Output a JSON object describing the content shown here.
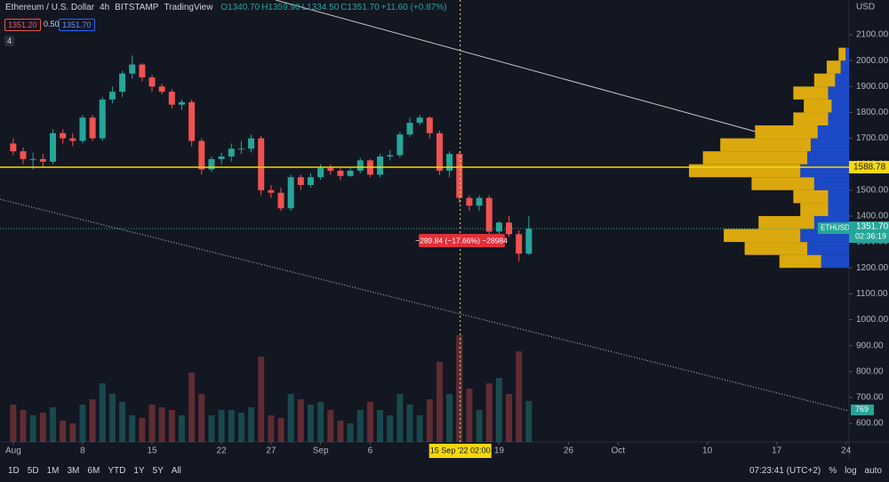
{
  "header": {
    "symbol": "Ethereum / U.S. Dollar",
    "interval": "4h",
    "exchange": "BITSTAMP",
    "source": "TradingView",
    "open": "O1340.70",
    "high": "H1359.90",
    "low": "L1334.50",
    "close": "C1351.70",
    "change": "+11.60 (+0.87%)",
    "bid": "1351.20",
    "spread": "0.50",
    "ask": "1351.70",
    "indicators": "4"
  },
  "toolbar": {
    "ranges": [
      "1D",
      "5D",
      "1M",
      "3M",
      "6M",
      "YTD",
      "1Y",
      "5Y",
      "All"
    ],
    "clock": "07:23:41 (UTC+2)",
    "percent": "%",
    "log": "log",
    "auto": "auto"
  },
  "chart_data": {
    "type": "candlestick",
    "currency": "USD",
    "x": [
      "2022-08-01",
      "2022-08-02",
      "2022-08-03",
      "2022-08-04",
      "2022-08-05",
      "2022-08-06",
      "2022-08-07",
      "2022-08-08",
      "2022-08-09",
      "2022-08-10",
      "2022-08-11",
      "2022-08-12",
      "2022-08-13",
      "2022-08-14",
      "2022-08-15",
      "2022-08-16",
      "2022-08-17",
      "2022-08-18",
      "2022-08-19",
      "2022-08-20",
      "2022-08-21",
      "2022-08-22",
      "2022-08-23",
      "2022-08-24",
      "2022-08-25",
      "2022-08-26",
      "2022-08-27",
      "2022-08-28",
      "2022-08-29",
      "2022-08-30",
      "2022-08-31",
      "2022-09-01",
      "2022-09-02",
      "2022-09-03",
      "2022-09-04",
      "2022-09-05",
      "2022-09-06",
      "2022-09-07",
      "2022-09-08",
      "2022-09-09",
      "2022-09-10",
      "2022-09-11",
      "2022-09-12",
      "2022-09-13",
      "2022-09-14",
      "2022-09-15",
      "2022-09-16",
      "2022-09-17",
      "2022-09-18",
      "2022-09-19",
      "2022-09-20",
      "2022-09-21",
      "2022-09-22"
    ],
    "open": [
      1680,
      1650,
      1620,
      1620,
      1610,
      1720,
      1700,
      1690,
      1780,
      1700,
      1850,
      1880,
      1950,
      1985,
      1935,
      1900,
      1880,
      1830,
      1840,
      1690,
      1580,
      1620,
      1630,
      1660,
      1660,
      1700,
      1500,
      1490,
      1430,
      1550,
      1520,
      1550,
      1585,
      1575,
      1555,
      1575,
      1615,
      1560,
      1630,
      1635,
      1715,
      1760,
      1780,
      1720,
      1575,
      1640,
      1470,
      1440,
      1470,
      1340,
      1375,
      1330,
      1255
    ],
    "high": [
      1700,
      1665,
      1645,
      1640,
      1735,
      1735,
      1720,
      1790,
      1790,
      1860,
      1900,
      1960,
      2020,
      1990,
      1945,
      1910,
      1890,
      1850,
      1850,
      1700,
      1630,
      1645,
      1680,
      1690,
      1715,
      1710,
      1520,
      1510,
      1560,
      1560,
      1565,
      1600,
      1600,
      1585,
      1590,
      1625,
      1620,
      1640,
      1655,
      1725,
      1780,
      1790,
      1785,
      1730,
      1650,
      1650,
      1480,
      1480,
      1480,
      1380,
      1400,
      1345,
      1400
    ],
    "low": [
      1635,
      1600,
      1580,
      1590,
      1600,
      1680,
      1670,
      1680,
      1690,
      1690,
      1835,
      1860,
      1930,
      1920,
      1880,
      1870,
      1815,
      1810,
      1670,
      1560,
      1570,
      1600,
      1610,
      1640,
      1645,
      1480,
      1470,
      1420,
      1420,
      1500,
      1510,
      1540,
      1560,
      1540,
      1550,
      1565,
      1550,
      1550,
      1615,
      1625,
      1705,
      1750,
      1700,
      1560,
      1550,
      1450,
      1420,
      1420,
      1330,
      1320,
      1320,
      1225,
      1250
    ],
    "close": [
      1650,
      1620,
      1620,
      1610,
      1720,
      1700,
      1690,
      1780,
      1700,
      1850,
      1880,
      1950,
      1985,
      1935,
      1900,
      1880,
      1830,
      1840,
      1690,
      1580,
      1620,
      1630,
      1660,
      1660,
      1700,
      1500,
      1490,
      1430,
      1550,
      1520,
      1550,
      1585,
      1575,
      1555,
      1575,
      1615,
      1560,
      1630,
      1635,
      1715,
      1760,
      1780,
      1720,
      1575,
      1640,
      1470,
      1440,
      1470,
      1340,
      1375,
      1330,
      1255,
      1351.7
    ],
    "volume": [
      700,
      600,
      500,
      550,
      650,
      400,
      350,
      700,
      800,
      1100,
      900,
      750,
      500,
      450,
      700,
      650,
      600,
      500,
      1300,
      900,
      500,
      600,
      600,
      550,
      650,
      1600,
      500,
      450,
      900,
      800,
      700,
      750,
      600,
      400,
      350,
      600,
      750,
      600,
      500,
      900,
      700,
      500,
      800,
      1500,
      900,
      2000,
      1000,
      600,
      1100,
      1200,
      900,
      1700,
      769
    ],
    "volume_label": "769",
    "up_color": "#26a69a",
    "down_color": "#ef5350",
    "xlim": [
      "2022-07-30T16:00",
      "2022-10-24T07:00"
    ],
    "xticks": [
      {
        "value": "2022-08-01",
        "label": "Aug"
      },
      {
        "value": "2022-08-08",
        "label": "8"
      },
      {
        "value": "2022-08-15",
        "label": "15"
      },
      {
        "value": "2022-08-22",
        "label": "22"
      },
      {
        "value": "2022-08-27",
        "label": "27"
      },
      {
        "value": "2022-09-01",
        "label": "Sep"
      },
      {
        "value": "2022-09-06",
        "label": "6"
      },
      {
        "value": "2022-09-19",
        "label": "19"
      },
      {
        "value": "2022-09-26",
        "label": "26"
      },
      {
        "value": "2022-10-01",
        "label": "Oct"
      },
      {
        "value": "2022-10-10",
        "label": "10"
      },
      {
        "value": "2022-10-17",
        "label": "17"
      },
      {
        "value": "2022-10-24",
        "label": "24"
      }
    ],
    "ylim": [
      528,
      2234
    ],
    "yticks": [
      {
        "value": 600,
        "label": "600.00"
      },
      {
        "value": 700,
        "label": "700.00"
      },
      {
        "value": 800,
        "label": "800.00"
      },
      {
        "value": 900,
        "label": "900.00"
      },
      {
        "value": 1000,
        "label": "1000.00"
      },
      {
        "value": 1100,
        "label": "1100.00"
      },
      {
        "value": 1200,
        "label": "1200.00"
      },
      {
        "value": 1300,
        "label": "1300.00"
      },
      {
        "value": 1400,
        "label": "1400.00"
      },
      {
        "value": 1500,
        "label": "1500.00"
      },
      {
        "value": 1600,
        "label": "1600.00"
      },
      {
        "value": 1700,
        "label": "1700.00"
      },
      {
        "value": 1800,
        "label": "1800.00"
      },
      {
        "value": 1900,
        "label": "1900.00"
      },
      {
        "value": 2000,
        "label": "2000.00"
      },
      {
        "value": 2100,
        "label": "2100.00"
      }
    ],
    "hline": {
      "value": 1588.78,
      "label": "1588.78",
      "color": "#f5d90a"
    },
    "last": {
      "value": 1351.7,
      "label": "1351.70",
      "symbol": "ETHUSD",
      "countdown": "02:36:19"
    },
    "crosshair": {
      "x": "2022-09-15T02:00",
      "label": "15 Sep '22   02:00"
    },
    "measure": "−289.84 (−17.66%) −28984",
    "volume_profile": {
      "prices": [
        1225,
        1275,
        1325,
        1375,
        1425,
        1475,
        1525,
        1575,
        1625,
        1675,
        1725,
        1775,
        1825,
        1875,
        1925,
        1975,
        2025
      ],
      "down": [
        60,
        90,
        110,
        80,
        40,
        50,
        90,
        160,
        150,
        130,
        90,
        50,
        40,
        50,
        30,
        20,
        10
      ],
      "up": [
        40,
        60,
        70,
        50,
        30,
        30,
        50,
        70,
        60,
        55,
        45,
        30,
        25,
        30,
        20,
        12,
        5
      ],
      "down_color": "#f2b90c",
      "up_color": "#1e4fd8"
    }
  }
}
